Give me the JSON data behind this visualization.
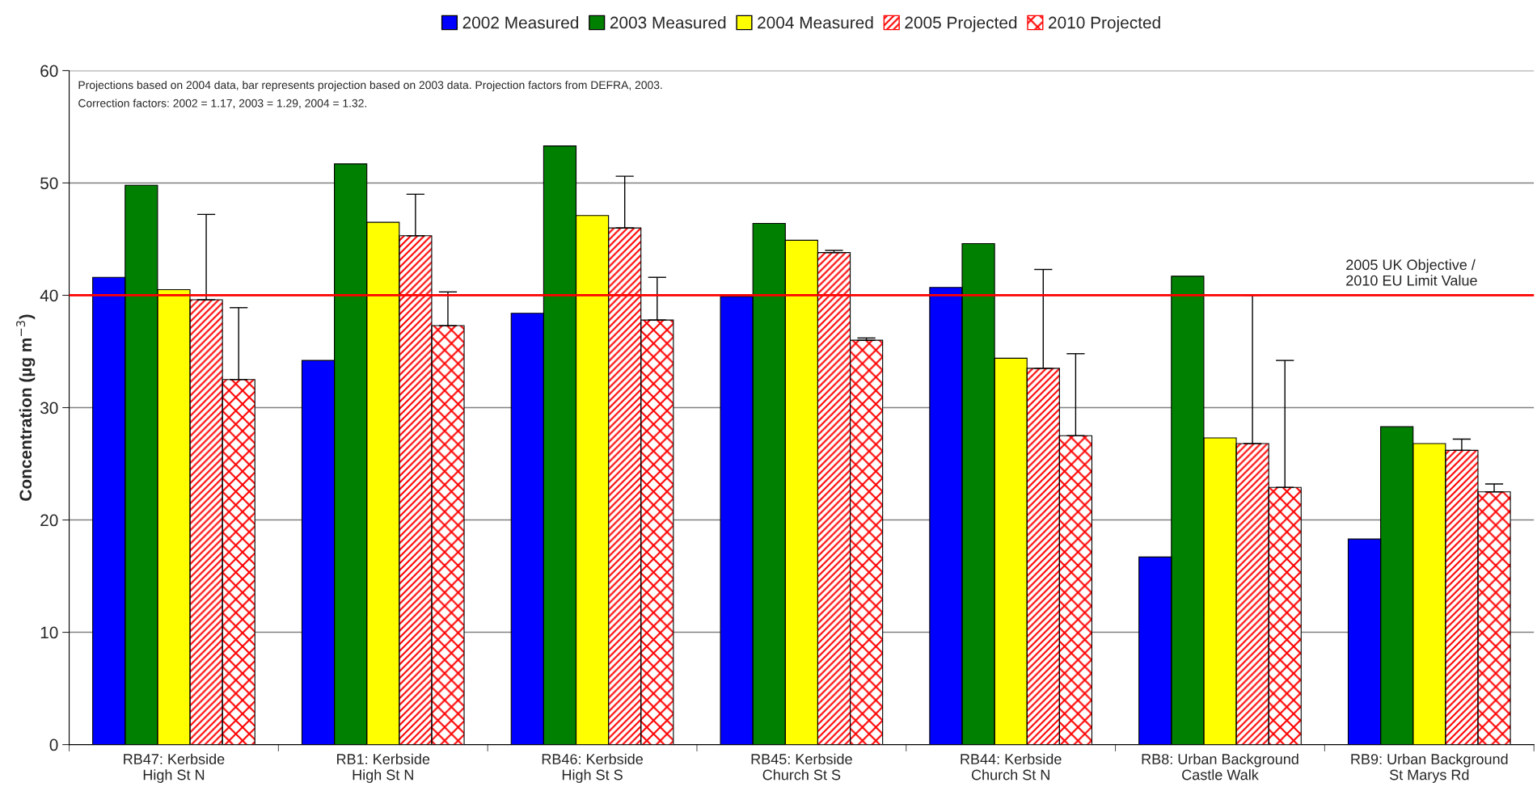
{
  "chart_data": {
    "type": "bar",
    "ylabel": "Concentration (µg m$^{−3}$)",
    "categories": [
      "RB47: Kerbside\nHigh St N",
      "RB1: Kerbside\nHigh St N",
      "RB46: Kerbside\nHigh St S",
      "RB45: Kerbside\nChurch St S",
      "RB44: Kerbside\nChurch St N",
      "RB8: Urban Background\nCastle Walk",
      "RB9: Urban Background\nSt Marys Rd"
    ],
    "series": [
      {
        "name": "2002 Measured",
        "color": "#0000ff",
        "values": [
          41.6,
          34.2,
          38.4,
          39.9,
          40.7,
          16.7,
          18.3
        ]
      },
      {
        "name": "2003 Measured",
        "color": "#008000",
        "values": [
          49.8,
          51.7,
          53.3,
          46.4,
          44.6,
          41.7,
          28.3
        ]
      },
      {
        "name": "2004 Measured",
        "color": "#ffff00",
        "values": [
          40.5,
          46.5,
          47.1,
          44.9,
          34.4,
          27.3,
          26.8
        ]
      },
      {
        "name": "2005 Projected",
        "color": "#ff0000",
        "values": [
          39.6,
          45.3,
          46.0,
          43.8,
          33.5,
          26.8,
          26.2
        ],
        "errors": [
          [
            39.6,
            47.2
          ],
          [
            45.3,
            49.0
          ],
          [
            46.0,
            50.6
          ],
          [
            43.8,
            44.0
          ],
          [
            33.5,
            42.3
          ],
          [
            26.8,
            40.0
          ],
          [
            26.2,
            27.2
          ]
        ]
      },
      {
        "name": "2010 Projected",
        "color": "#ff0000",
        "values": [
          32.5,
          37.3,
          37.8,
          36.0,
          27.5,
          22.9,
          22.5
        ],
        "errors": [
          [
            32.5,
            38.9
          ],
          [
            37.3,
            40.3
          ],
          [
            37.8,
            41.6
          ],
          [
            36.0,
            36.2
          ],
          [
            27.5,
            34.8
          ],
          [
            22.9,
            34.2
          ],
          [
            22.5,
            23.2
          ]
        ]
      }
    ],
    "ylim": [
      0,
      60
    ],
    "yticks": [
      0,
      10,
      20,
      30,
      40,
      50,
      60
    ],
    "grid": "y",
    "legend": "top",
    "ref_lines": [
      {
        "axis": "y",
        "value": 40,
        "label": "2005 UK Objective /\n2010 EU Limit Value",
        "color": "#ff0000"
      }
    ],
    "annotations": [
      "Projections based on 2004 data, bar represents projection based on 2003 data. Projection factors from DEFRA, 2003.",
      "Correction factors: 2002 = 1.17, 2003 = 1.29, 2004 = 1.32."
    ]
  }
}
